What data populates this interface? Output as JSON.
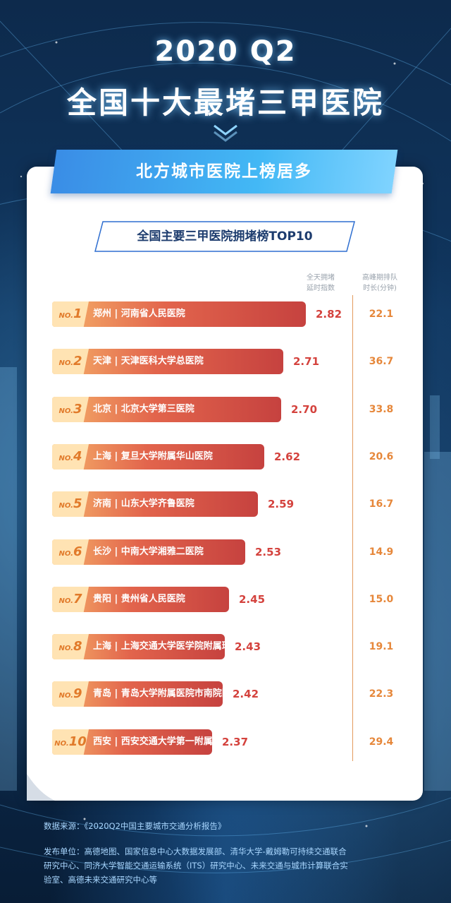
{
  "header": {
    "year": "2020 Q2",
    "title": "全国十大最堵三甲医院",
    "banner": "北方城市医院上榜居多"
  },
  "table": {
    "subtitle": "全国主要三甲医院拥堵榜TOP10",
    "col_index_line1": "全天拥堵",
    "col_index_line2": "延时指数",
    "col_wait_line1": "高峰期排队",
    "col_wait_line2": "时长(分钟)"
  },
  "footer": {
    "source": "数据来源：《2020Q2中国主要城市交通分析报告》",
    "publisher_line1": "发布单位：高德地图、国家信息中心大数据发展部、清华大学-戴姆勒可持续交通联合",
    "publisher_line2": "研究中心、同济大学智能交通运输系统（ITS）研究中心、未来交通与城市计算联合实",
    "publisher_line3": "验室、高德未来交通研究中心等"
  },
  "colors": {
    "bar_start": "#f6b36a",
    "bar_end": "#c6423f",
    "badge": "#ffe3b3",
    "index_text": "#d4423d",
    "wait_text": "#e6873a",
    "banner": "#43b8f5"
  },
  "chart_data": {
    "type": "bar",
    "orientation": "horizontal",
    "title": "全国主要三甲医院拥堵榜TOP10",
    "categories": [
      "郑州 | 河南省人民医院",
      "天津 | 天津医科大学总医院",
      "北京 | 北京大学第三医院",
      "上海 | 复旦大学附属华山医院",
      "济南 | 山东大学齐鲁医院",
      "长沙 | 中南大学湘雅二医院",
      "贵阳 | 贵州省人民医院",
      "上海 | 上海交通大学医学院附属瑞金医院",
      "青岛 | 青岛大学附属医院市南院区",
      "西安 | 西安交通大学第一附属医院"
    ],
    "ranks": [
      "NO.1",
      "NO.2",
      "NO.3",
      "NO.4",
      "NO.5",
      "NO.6",
      "NO.7",
      "NO.8",
      "NO.9",
      "NO.10"
    ],
    "series": [
      {
        "name": "全天拥堵延时指数",
        "values": [
          2.82,
          2.71,
          2.7,
          2.62,
          2.59,
          2.53,
          2.45,
          2.43,
          2.42,
          2.37
        ]
      },
      {
        "name": "高峰期排队时长(分钟)",
        "values": [
          22.1,
          36.7,
          33.8,
          20.6,
          16.7,
          14.9,
          15.0,
          19.1,
          22.3,
          29.4
        ]
      }
    ],
    "index_labels": [
      "2.82",
      "2.71",
      "2.70",
      "2.62",
      "2.59",
      "2.53",
      "2.45",
      "2.43",
      "2.42",
      "2.37"
    ],
    "wait_labels": [
      "22.1",
      "36.7",
      "33.8",
      "20.6",
      "16.7",
      "14.9",
      "15.0",
      "19.1",
      "22.3",
      "29.4"
    ]
  }
}
